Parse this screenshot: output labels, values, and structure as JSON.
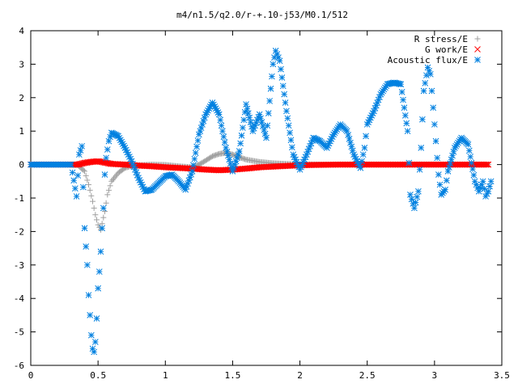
{
  "chart_data": {
    "type": "scatter",
    "title": "m4/n1.5/q2.0/r-+.10-j53/M0.1/512",
    "xlabel": "",
    "ylabel": "",
    "xlim": [
      0,
      3.5
    ],
    "ylim": [
      -6,
      4
    ],
    "grid": false,
    "legend_position": "top-right",
    "x_ticks": [
      "0",
      "0.5",
      "1",
      "1.5",
      "2",
      "2.5",
      "3",
      "3.5"
    ],
    "y_ticks": [
      "4",
      "3",
      "2",
      "1",
      "0",
      "-1",
      "-2",
      "-3",
      "-4",
      "-5",
      "-6"
    ],
    "series": [
      {
        "name": "R stress/E",
        "marker": "+",
        "color": "#a0a0a0",
        "points": [
          [
            0.0,
            0.0
          ],
          [
            0.1,
            0.0
          ],
          [
            0.2,
            0.0
          ],
          [
            0.3,
            0.0
          ],
          [
            0.35,
            -0.02
          ],
          [
            0.4,
            -0.2
          ],
          [
            0.43,
            -0.6
          ],
          [
            0.46,
            -1.1
          ],
          [
            0.48,
            -1.5
          ],
          [
            0.5,
            -1.8
          ],
          [
            0.52,
            -1.95
          ],
          [
            0.55,
            -1.4
          ],
          [
            0.57,
            -0.9
          ],
          [
            0.6,
            -0.5
          ],
          [
            0.65,
            -0.25
          ],
          [
            0.7,
            -0.1
          ],
          [
            0.75,
            -0.04
          ],
          [
            0.8,
            -0.02
          ],
          [
            0.9,
            0.0
          ],
          [
            1.0,
            -0.01
          ],
          [
            1.1,
            -0.05
          ],
          [
            1.2,
            -0.08
          ],
          [
            1.25,
            0.0
          ],
          [
            1.3,
            0.12
          ],
          [
            1.35,
            0.25
          ],
          [
            1.4,
            0.32
          ],
          [
            1.45,
            0.35
          ],
          [
            1.5,
            0.3
          ],
          [
            1.55,
            0.22
          ],
          [
            1.6,
            0.15
          ],
          [
            1.7,
            0.08
          ],
          [
            1.8,
            0.04
          ],
          [
            1.9,
            0.02
          ],
          [
            2.0,
            0.01
          ],
          [
            2.2,
            0.0
          ],
          [
            2.5,
            0.0
          ],
          [
            2.8,
            0.0
          ],
          [
            3.0,
            0.0
          ],
          [
            3.2,
            0.0
          ],
          [
            3.4,
            0.0
          ]
        ]
      },
      {
        "name": "G work/E",
        "marker": "x",
        "color": "#ff0000",
        "points": [
          [
            0.0,
            0.0
          ],
          [
            0.1,
            0.0
          ],
          [
            0.2,
            0.0
          ],
          [
            0.3,
            0.0
          ],
          [
            0.35,
            0.0
          ],
          [
            0.4,
            0.05
          ],
          [
            0.45,
            0.08
          ],
          [
            0.5,
            0.1
          ],
          [
            0.55,
            0.06
          ],
          [
            0.6,
            0.02
          ],
          [
            0.7,
            0.0
          ],
          [
            0.8,
            -0.03
          ],
          [
            0.9,
            -0.05
          ],
          [
            1.0,
            -0.08
          ],
          [
            1.1,
            -0.1
          ],
          [
            1.2,
            -0.12
          ],
          [
            1.3,
            -0.15
          ],
          [
            1.4,
            -0.17
          ],
          [
            1.5,
            -0.15
          ],
          [
            1.6,
            -0.12
          ],
          [
            1.7,
            -0.08
          ],
          [
            1.8,
            -0.06
          ],
          [
            1.9,
            -0.04
          ],
          [
            2.0,
            -0.02
          ],
          [
            2.1,
            -0.01
          ],
          [
            2.3,
            0.0
          ],
          [
            2.5,
            0.0
          ],
          [
            2.7,
            0.0
          ],
          [
            2.9,
            0.0
          ],
          [
            3.1,
            0.0
          ],
          [
            3.3,
            0.0
          ],
          [
            3.4,
            0.0
          ]
        ]
      },
      {
        "name": "Acoustic flux/E",
        "marker": "*",
        "color": "#0080e0",
        "points": [
          [
            0.0,
            0.0
          ],
          [
            0.1,
            0.0
          ],
          [
            0.2,
            0.0
          ],
          [
            0.3,
            0.0
          ],
          [
            0.34,
            -0.95
          ],
          [
            0.36,
            0.3
          ],
          [
            0.38,
            0.55
          ],
          [
            0.4,
            -1.9
          ],
          [
            0.42,
            -3.0
          ],
          [
            0.43,
            -3.9
          ],
          [
            0.44,
            -4.5
          ],
          [
            0.45,
            -5.1
          ],
          [
            0.46,
            -5.5
          ],
          [
            0.47,
            -5.6
          ],
          [
            0.48,
            -5.3
          ],
          [
            0.49,
            -4.6
          ],
          [
            0.5,
            -3.7
          ],
          [
            0.51,
            -3.2
          ],
          [
            0.52,
            -2.6
          ],
          [
            0.53,
            -1.9
          ],
          [
            0.54,
            -1.3
          ],
          [
            0.55,
            -0.3
          ],
          [
            0.56,
            0.2
          ],
          [
            0.58,
            0.7
          ],
          [
            0.6,
            0.95
          ],
          [
            0.65,
            0.85
          ],
          [
            0.7,
            0.5
          ],
          [
            0.75,
            0.1
          ],
          [
            0.8,
            -0.4
          ],
          [
            0.85,
            -0.8
          ],
          [
            0.9,
            -0.75
          ],
          [
            0.95,
            -0.55
          ],
          [
            1.0,
            -0.35
          ],
          [
            1.05,
            -0.3
          ],
          [
            1.1,
            -0.5
          ],
          [
            1.15,
            -0.75
          ],
          [
            1.2,
            -0.2
          ],
          [
            1.25,
            0.9
          ],
          [
            1.3,
            1.5
          ],
          [
            1.35,
            1.85
          ],
          [
            1.4,
            1.5
          ],
          [
            1.45,
            0.5
          ],
          [
            1.5,
            -0.2
          ],
          [
            1.55,
            0.4
          ],
          [
            1.6,
            1.8
          ],
          [
            1.65,
            1.0
          ],
          [
            1.7,
            1.5
          ],
          [
            1.75,
            0.8
          ],
          [
            1.8,
            3.0
          ],
          [
            1.82,
            3.4
          ],
          [
            1.85,
            3.1
          ],
          [
            1.9,
            1.6
          ],
          [
            1.95,
            0.3
          ],
          [
            2.0,
            -0.15
          ],
          [
            2.05,
            0.3
          ],
          [
            2.1,
            0.8
          ],
          [
            2.15,
            0.7
          ],
          [
            2.2,
            0.5
          ],
          [
            2.25,
            0.9
          ],
          [
            2.3,
            1.2
          ],
          [
            2.35,
            1.0
          ],
          [
            2.4,
            0.3
          ],
          [
            2.45,
            -0.1
          ],
          [
            2.48,
            0.5
          ],
          [
            2.5,
            1.2
          ],
          [
            2.55,
            1.6
          ],
          [
            2.6,
            2.1
          ],
          [
            2.65,
            2.4
          ],
          [
            2.7,
            2.45
          ],
          [
            2.75,
            2.4
          ],
          [
            2.8,
            1.0
          ],
          [
            2.82,
            -0.9
          ],
          [
            2.85,
            -1.3
          ],
          [
            2.88,
            -0.8
          ],
          [
            2.9,
            0.5
          ],
          [
            2.92,
            2.2
          ],
          [
            2.95,
            2.9
          ],
          [
            2.97,
            2.7
          ],
          [
            3.0,
            1.2
          ],
          [
            3.03,
            -0.3
          ],
          [
            3.05,
            -0.9
          ],
          [
            3.08,
            -0.75
          ],
          [
            3.1,
            -0.2
          ],
          [
            3.15,
            0.5
          ],
          [
            3.2,
            0.8
          ],
          [
            3.25,
            0.6
          ],
          [
            3.3,
            -0.5
          ],
          [
            3.33,
            -0.8
          ],
          [
            3.36,
            -0.5
          ],
          [
            3.38,
            -0.95
          ],
          [
            3.4,
            -0.8
          ],
          [
            3.42,
            -0.5
          ]
        ]
      }
    ]
  }
}
